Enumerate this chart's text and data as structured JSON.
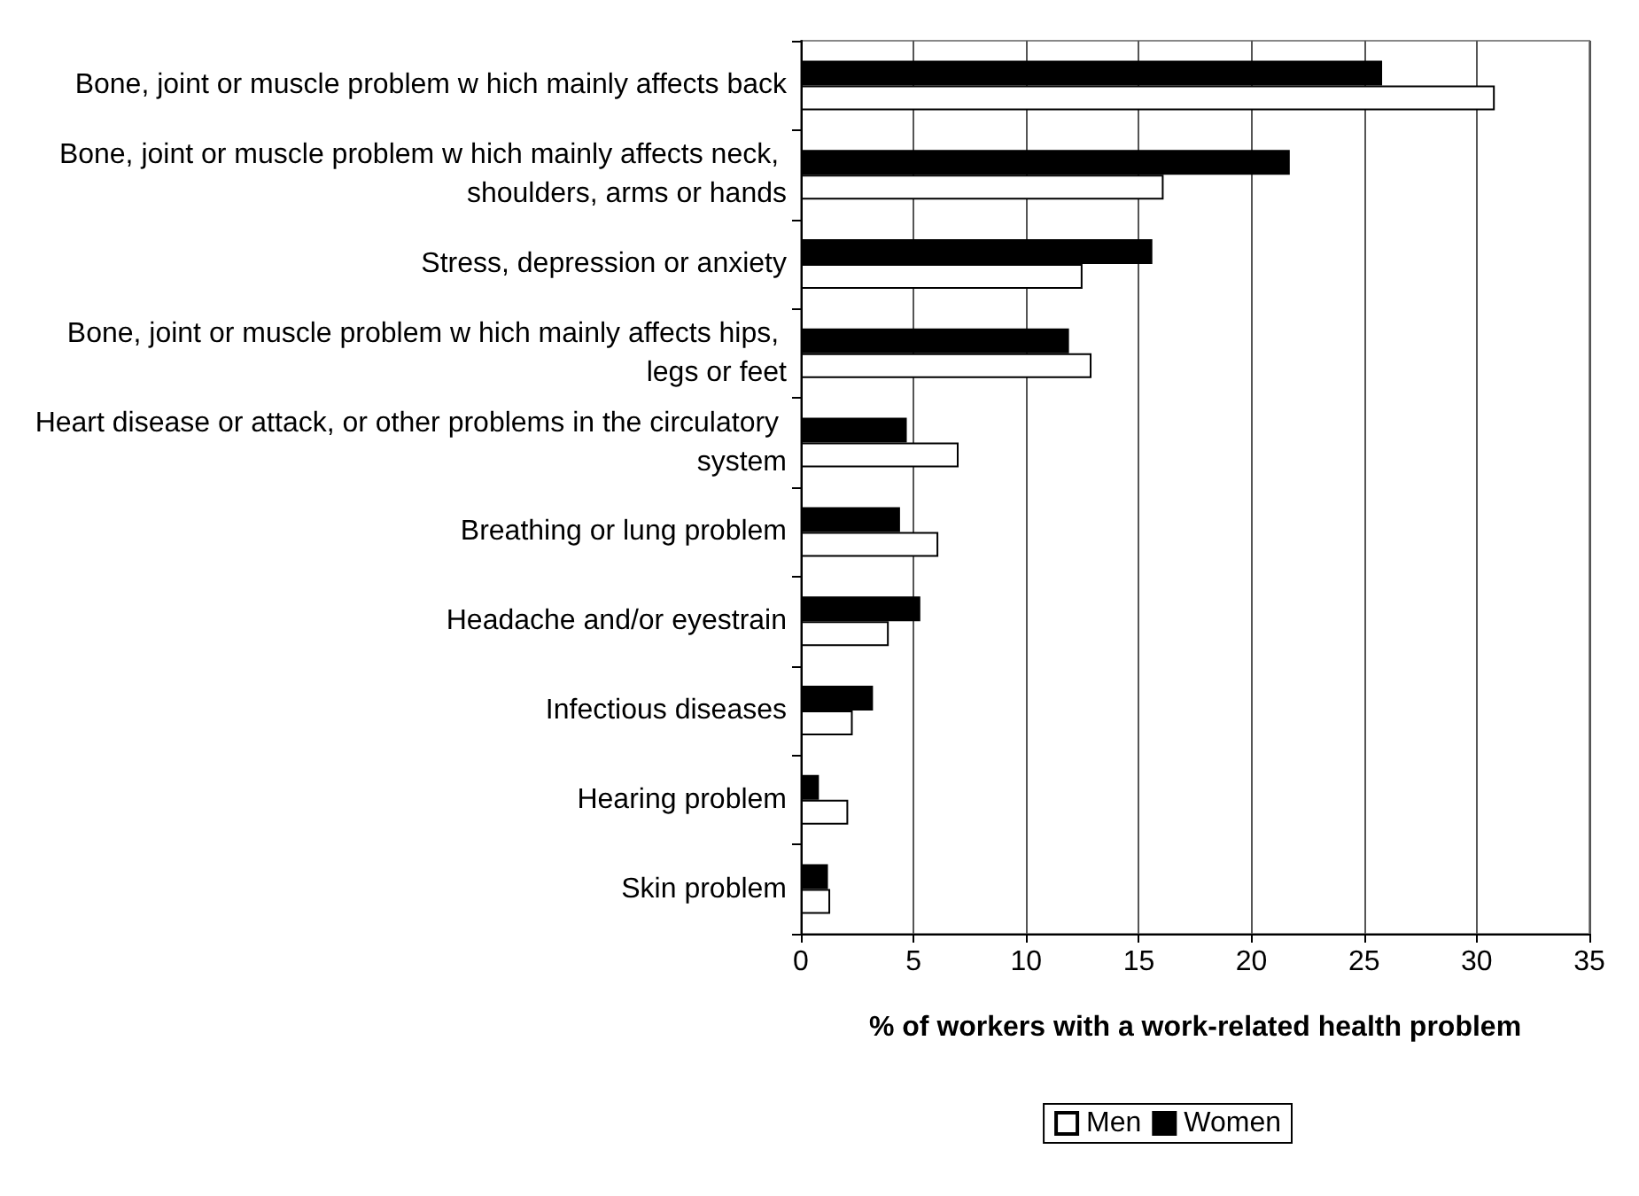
{
  "chart_data": {
    "type": "bar",
    "orientation": "horizontal",
    "categories": [
      "Bone, joint or muscle problem w hich mainly affects back",
      "Bone, joint or muscle problem w hich mainly affects neck, shoulders, arms or hands",
      "Stress, depression or anxiety",
      "Bone, joint or muscle problem w hich mainly affects hips, legs or feet",
      "Heart disease or attack, or other problems in the circulatory system",
      "Breathing or lung problem",
      "Headache and/or eyestrain",
      "Infectious diseases",
      "Hearing problem",
      "Skin problem"
    ],
    "series": [
      {
        "name": "Men",
        "color": "#ffffff",
        "values": [
          30.8,
          16.1,
          12.5,
          12.9,
          7.0,
          6.1,
          3.9,
          2.3,
          2.1,
          1.3
        ]
      },
      {
        "name": "Women",
        "color": "#000000",
        "values": [
          25.8,
          21.7,
          15.6,
          11.9,
          4.7,
          4.4,
          5.3,
          3.2,
          0.8,
          1.2
        ]
      }
    ],
    "xlabel": "% of workers with a work-related health problem",
    "xlim": [
      0,
      35
    ],
    "xticks": [
      0,
      5,
      10,
      15,
      20,
      25,
      30,
      35
    ],
    "grid": "x",
    "legend": "bottom right"
  }
}
